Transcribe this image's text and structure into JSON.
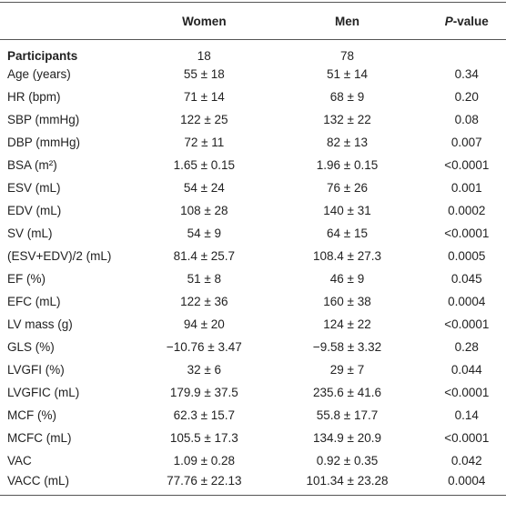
{
  "table": {
    "header": {
      "women": "Women",
      "men": "Men",
      "p_value_italic": "P",
      "p_value_rest": "-value"
    },
    "rows": [
      [
        "Participants",
        "18",
        "78"
      ],
      [
        "Age (years)",
        "55 ± 18",
        "51 ± 14",
        "0.34"
      ],
      [
        "HR (bpm)",
        "71 ± 14",
        "68 ± 9",
        "0.20"
      ],
      [
        "SBP (mmHg)",
        "122 ± 25",
        "132 ± 22",
        "0.08"
      ],
      [
        "DBP (mmHg)",
        "72 ± 11",
        "82 ± 13",
        "0.007"
      ],
      [
        "BSA (m²)",
        "1.65 ± 0.15",
        "1.96 ± 0.15",
        "<0.0001"
      ],
      [
        "ESV (mL)",
        "54 ± 24",
        "76 ± 26",
        "0.001"
      ],
      [
        "EDV (mL)",
        "108 ± 28",
        "140 ± 31",
        "0.0002"
      ],
      [
        "SV (mL)",
        "54 ± 9",
        "64 ± 15",
        "<0.0001"
      ],
      [
        "(ESV+EDV)/2 (mL)",
        "81.4 ± 25.7",
        "108.4 ± 27.3",
        "0.0005"
      ],
      [
        "EF (%)",
        "51 ± 8",
        "46 ± 9",
        "0.045"
      ],
      [
        "EFC (mL)",
        "122 ± 36",
        "160 ± 38",
        "0.0004"
      ],
      [
        "LV mass (g)",
        "94 ± 20",
        "124 ± 22",
        "<0.0001"
      ],
      [
        "GLS (%)",
        "−10.76 ± 3.47",
        "−9.58 ± 3.32",
        "0.28"
      ],
      [
        "LVGFI (%)",
        "32 ± 6",
        "29 ± 7",
        "0.044"
      ],
      [
        "LVGFIC (mL)",
        "179.9 ± 37.5",
        "235.6 ± 41.6",
        "<0.0001"
      ],
      [
        "MCF (%)",
        "62.3 ± 15.7",
        "55.8 ± 17.7",
        "0.14"
      ],
      [
        "MCFC (mL)",
        "105.5 ± 17.3",
        "134.9 ± 20.9",
        "<0.0001"
      ],
      [
        "VAC",
        "1.09 ± 0.28",
        "0.92 ± 0.35",
        "0.042"
      ],
      [
        "VACC (mL)",
        "77.76 ± 22.13",
        "101.34 ± 23.28",
        "0.0004"
      ]
    ]
  }
}
